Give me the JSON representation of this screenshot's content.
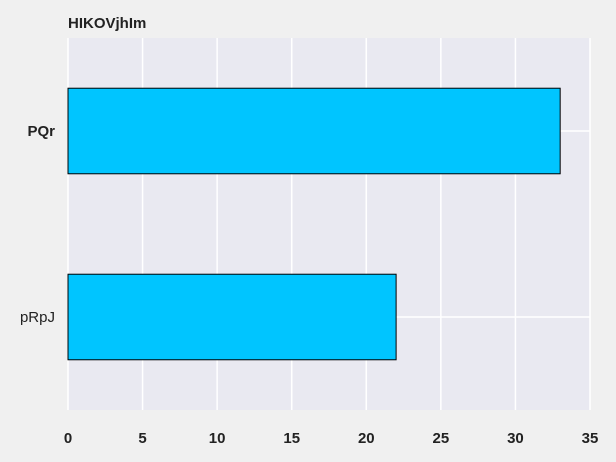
{
  "chart_data": {
    "type": "bar",
    "orientation": "horizontal",
    "title": "HIKOVjhIm",
    "xlabel": "",
    "ylabel": "",
    "categories": [
      "PQr",
      "pRpJ"
    ],
    "values": [
      33,
      22
    ],
    "bold_categories": [
      "PQr"
    ],
    "xlim": [
      0,
      35
    ],
    "xticks": [
      0,
      5,
      10,
      15,
      20,
      25,
      30,
      35
    ],
    "grid": true,
    "legend": "none",
    "colors": {
      "bar": "#00c5ff",
      "bar_edge": "#000000",
      "plot_background": "#e9e9f1",
      "grid": "#ffffff",
      "figure_background": "#f0f0f0"
    }
  }
}
